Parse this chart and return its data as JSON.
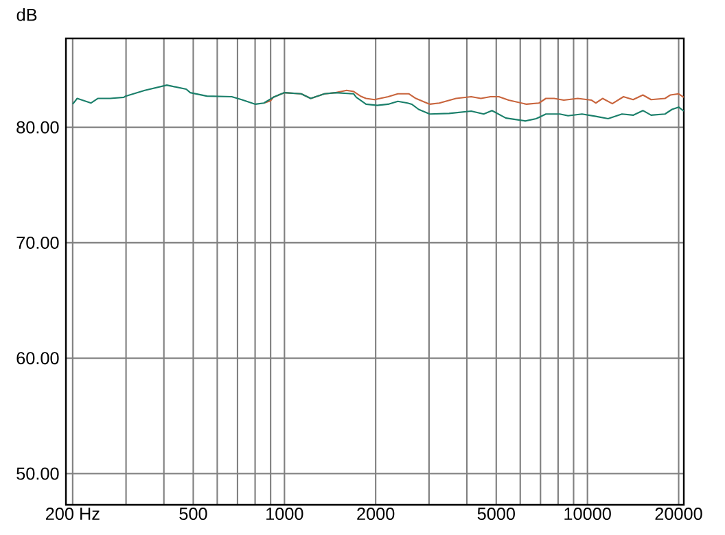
{
  "chart_data": {
    "type": "line",
    "ylabel": "dB",
    "log": "x",
    "grid": true,
    "xlim": [
      190,
      20800
    ],
    "ylim": [
      47.3,
      87.7
    ],
    "xticks": [
      {
        "value": 200,
        "label": "200 Hz"
      },
      {
        "value": 300,
        "label": null
      },
      {
        "value": 400,
        "label": null
      },
      500,
      {
        "value": 600,
        "label": null
      },
      {
        "value": 700,
        "label": null
      },
      {
        "value": 800,
        "label": null
      },
      {
        "value": 900,
        "label": null
      },
      1000,
      2000,
      {
        "value": 3000,
        "label": null
      },
      {
        "value": 4000,
        "label": null
      },
      5000,
      {
        "value": 6000,
        "label": null
      },
      {
        "value": 7000,
        "label": null
      },
      {
        "value": 8000,
        "label": null
      },
      {
        "value": 9000,
        "label": null
      },
      10000,
      20000
    ],
    "yticks": [
      {
        "value": 50,
        "label": "50.00"
      },
      {
        "value": 60,
        "label": "60.00"
      },
      {
        "value": 70,
        "label": "70.00"
      },
      {
        "value": 80,
        "label": "80.00"
      }
    ],
    "series": [
      {
        "color": "#c8643c",
        "x": [
          855,
          900,
          919,
          1000,
          1135,
          1221,
          1356,
          1475,
          1604,
          1691,
          1783,
          1859,
          1982,
          2199,
          2367,
          2576,
          2715,
          3016,
          3246,
          3683,
          4133,
          4449,
          4786,
          5102,
          5495,
          6295,
          6918,
          7295,
          7762,
          8356,
          9290,
          10320,
          10650,
          11220,
          12080,
          13150,
          14150,
          15240,
          16220,
          18030,
          18800,
          20000,
          20800
        ],
        "values": [
          82.1,
          82.3,
          82.6,
          83.0,
          82.9,
          82.5,
          82.9,
          83.0,
          83.2,
          83.1,
          82.7,
          82.5,
          82.4,
          82.65,
          82.9,
          82.9,
          82.5,
          82.0,
          82.1,
          82.5,
          82.65,
          82.5,
          82.65,
          82.65,
          82.35,
          82.0,
          82.1,
          82.5,
          82.5,
          82.35,
          82.5,
          82.35,
          82.1,
          82.5,
          82.05,
          82.65,
          82.4,
          82.8,
          82.4,
          82.5,
          82.8,
          82.9,
          82.6
        ]
      },
      {
        "color": "#1a7f6a",
        "x": [
          200,
          207,
          230,
          242,
          266,
          295,
          299,
          346,
          409,
          474,
          489,
          555,
          670,
          722,
          802,
          855,
          919,
          1000,
          1135,
          1221,
          1356,
          1475,
          1691,
          1727,
          1859,
          2023,
          2199,
          2367,
          2549,
          2630,
          2773,
          3016,
          3493,
          4133,
          4545,
          4842,
          5379,
          6235,
          6776,
          7295,
          8106,
          8630,
          9594,
          10650,
          11700,
          13000,
          14150,
          15240,
          16220,
          18030,
          19010,
          20000,
          20800
        ],
        "values": [
          82.0,
          82.5,
          82.1,
          82.5,
          82.5,
          82.6,
          82.7,
          83.2,
          83.65,
          83.3,
          83.0,
          82.7,
          82.65,
          82.4,
          82.0,
          82.1,
          82.6,
          83.0,
          82.9,
          82.5,
          82.9,
          83.0,
          82.9,
          82.6,
          82.0,
          81.9,
          82.0,
          82.25,
          82.1,
          82.0,
          81.55,
          81.15,
          81.2,
          81.4,
          81.15,
          81.45,
          80.8,
          80.55,
          80.75,
          81.15,
          81.15,
          81.0,
          81.15,
          80.95,
          80.75,
          81.15,
          81.05,
          81.45,
          81.05,
          81.15,
          81.55,
          81.75,
          81.4
        ]
      }
    ]
  }
}
